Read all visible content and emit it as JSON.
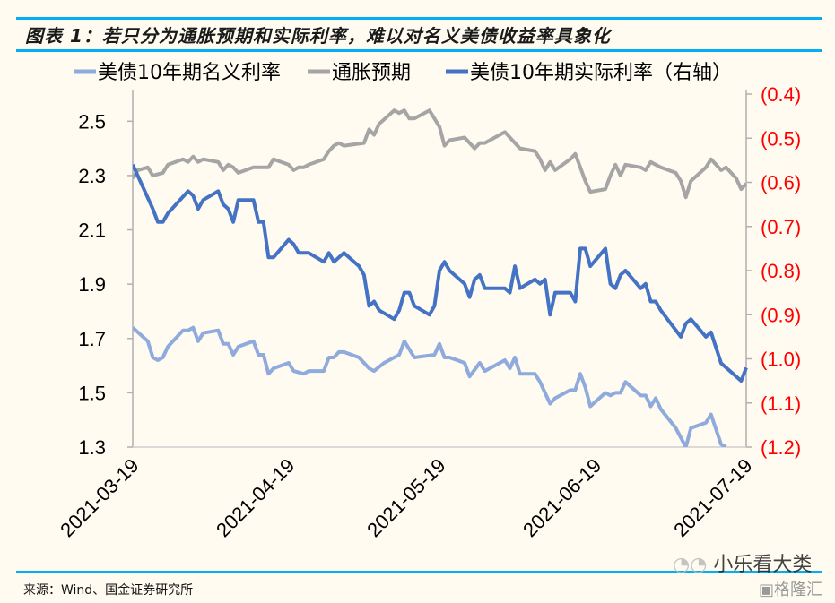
{
  "title": "图表 1：若只分为通胀预期和实际利率，难以对名义美债收益率具象化",
  "source": "来源：Wind、国金证券研究所",
  "watermark": "小乐看大类",
  "watermark_logo": "格隆汇",
  "chart_data": {
    "type": "line",
    "legend_position": "top",
    "grid": false,
    "x_ticks": [
      "2021-03-19",
      "2021-04-19",
      "2021-05-19",
      "2021-06-19",
      "2021-07-19"
    ],
    "xlim": [
      "2021-03-19",
      "2021-07-19"
    ],
    "y_left": {
      "ylim": [
        1.3,
        2.6
      ],
      "ticks": [
        1.3,
        1.5,
        1.7,
        1.9,
        2.1,
        2.3,
        2.5
      ],
      "tick_labels": [
        "1.3",
        "1.5",
        "1.7",
        "1.9",
        "2.1",
        "2.3",
        "2.5"
      ]
    },
    "y_right": {
      "ylim": [
        -1.2,
        -0.4
      ],
      "ticks": [
        -1.2,
        -1.1,
        -1.0,
        -0.9,
        -0.8,
        -0.7,
        -0.6,
        -0.5,
        -0.4
      ],
      "tick_labels": [
        "(1.2)",
        "(1.1)",
        "(1.0)",
        "(0.9)",
        "(0.8)",
        "(0.7)",
        "(0.6)",
        "(0.5)",
        "(0.4)"
      ],
      "label_color": "#ff0000"
    },
    "series": [
      {
        "name": "美债10年期名义利率",
        "axis": "left",
        "color": "#8faadc",
        "x": [
          "2021-03-19",
          "2021-03-22",
          "2021-03-23",
          "2021-03-24",
          "2021-03-25",
          "2021-03-26",
          "2021-03-29",
          "2021-03-30",
          "2021-03-31",
          "2021-04-01",
          "2021-04-02",
          "2021-04-05",
          "2021-04-06",
          "2021-04-07",
          "2021-04-08",
          "2021-04-09",
          "2021-04-12",
          "2021-04-13",
          "2021-04-14",
          "2021-04-15",
          "2021-04-16",
          "2021-04-19",
          "2021-04-20",
          "2021-04-22",
          "2021-04-23",
          "2021-04-26",
          "2021-04-27",
          "2021-04-28",
          "2021-04-29",
          "2021-04-30",
          "2021-05-03",
          "2021-05-05",
          "2021-05-06",
          "2021-05-08",
          "2021-05-11",
          "2021-05-12",
          "2021-05-14",
          "2021-05-18",
          "2021-05-19",
          "2021-05-20",
          "2021-05-21",
          "2021-05-24",
          "2021-05-25",
          "2021-05-27",
          "2021-05-28",
          "2021-06-01",
          "2021-06-02",
          "2021-06-03",
          "2021-06-04",
          "2021-06-07",
          "2021-06-08",
          "2021-06-09",
          "2021-06-10",
          "2021-06-11",
          "2021-06-14",
          "2021-06-15",
          "2021-06-16",
          "2021-06-17",
          "2021-06-18",
          "2021-06-21",
          "2021-06-22",
          "2021-06-23",
          "2021-06-24",
          "2021-06-25",
          "2021-06-28",
          "2021-06-29",
          "2021-06-30",
          "2021-07-01",
          "2021-07-02",
          "2021-07-05",
          "2021-07-07",
          "2021-07-08",
          "2021-07-11",
          "2021-07-12",
          "2021-07-14",
          "2021-07-15"
        ],
        "values": [
          1.74,
          1.69,
          1.63,
          1.62,
          1.63,
          1.67,
          1.73,
          1.73,
          1.74,
          1.69,
          1.72,
          1.73,
          1.68,
          1.68,
          1.64,
          1.67,
          1.69,
          1.64,
          1.64,
          1.57,
          1.59,
          1.61,
          1.58,
          1.57,
          1.58,
          1.58,
          1.63,
          1.63,
          1.65,
          1.65,
          1.63,
          1.59,
          1.58,
          1.61,
          1.64,
          1.69,
          1.63,
          1.64,
          1.68,
          1.63,
          1.63,
          1.61,
          1.56,
          1.61,
          1.58,
          1.62,
          1.59,
          1.63,
          1.57,
          1.57,
          1.54,
          1.5,
          1.46,
          1.48,
          1.51,
          1.51,
          1.57,
          1.52,
          1.45,
          1.5,
          1.49,
          1.5,
          1.5,
          1.54,
          1.49,
          1.49,
          1.45,
          1.48,
          1.44,
          1.37,
          1.3,
          1.37,
          1.39,
          1.42,
          1.31,
          1.3
        ]
      },
      {
        "name": "通胀预期",
        "axis": "left",
        "color": "#a5a5a5",
        "x": [
          "2021-03-19",
          "2021-03-20",
          "2021-03-22",
          "2021-03-23",
          "2021-03-25",
          "2021-03-26",
          "2021-03-29",
          "2021-03-30",
          "2021-03-31",
          "2021-04-01",
          "2021-04-02",
          "2021-04-05",
          "2021-04-06",
          "2021-04-07",
          "2021-04-08",
          "2021-04-09",
          "2021-04-12",
          "2021-04-15",
          "2021-04-16",
          "2021-04-19",
          "2021-04-20",
          "2021-04-21",
          "2021-04-22",
          "2021-04-23",
          "2021-04-26",
          "2021-04-27",
          "2021-04-28",
          "2021-04-29",
          "2021-04-30",
          "2021-05-04",
          "2021-05-05",
          "2021-05-06",
          "2021-05-07",
          "2021-05-10",
          "2021-05-11",
          "2021-05-12",
          "2021-05-13",
          "2021-05-14",
          "2021-05-17",
          "2021-05-18",
          "2021-05-19",
          "2021-05-20",
          "2021-05-21",
          "2021-05-24",
          "2021-05-26",
          "2021-05-27",
          "2021-05-28",
          "2021-06-01",
          "2021-06-04",
          "2021-06-07",
          "2021-06-08",
          "2021-06-09",
          "2021-06-10",
          "2021-06-11",
          "2021-06-14",
          "2021-06-15",
          "2021-06-16",
          "2021-06-17",
          "2021-06-18",
          "2021-06-21",
          "2021-06-22",
          "2021-06-23",
          "2021-06-24",
          "2021-06-25",
          "2021-06-28",
          "2021-06-29",
          "2021-06-30",
          "2021-07-02",
          "2021-07-05",
          "2021-07-06",
          "2021-07-07",
          "2021-07-08",
          "2021-07-11",
          "2021-07-12",
          "2021-07-14",
          "2021-07-15",
          "2021-07-17",
          "2021-07-18",
          "2021-07-19"
        ],
        "values": [
          2.29,
          2.32,
          2.33,
          2.3,
          2.31,
          2.34,
          2.36,
          2.35,
          2.37,
          2.35,
          2.36,
          2.35,
          2.32,
          2.34,
          2.33,
          2.31,
          2.33,
          2.33,
          2.36,
          2.34,
          2.32,
          2.33,
          2.33,
          2.34,
          2.36,
          2.39,
          2.41,
          2.42,
          2.41,
          2.42,
          2.47,
          2.45,
          2.49,
          2.54,
          2.53,
          2.54,
          2.51,
          2.51,
          2.54,
          2.51,
          2.48,
          2.41,
          2.43,
          2.44,
          2.4,
          2.42,
          2.42,
          2.46,
          2.4,
          2.39,
          2.36,
          2.32,
          2.35,
          2.32,
          2.36,
          2.38,
          2.33,
          2.28,
          2.24,
          2.25,
          2.3,
          2.34,
          2.3,
          2.34,
          2.33,
          2.32,
          2.35,
          2.33,
          2.31,
          2.28,
          2.22,
          2.28,
          2.33,
          2.36,
          2.32,
          2.33,
          2.29,
          2.25,
          2.27
        ]
      },
      {
        "name": "美债10年期实际利率（右轴）",
        "axis": "right",
        "color": "#4472c4",
        "x": [
          "2021-03-19",
          "2021-03-23",
          "2021-03-24",
          "2021-03-25",
          "2021-03-26",
          "2021-03-30",
          "2021-03-31",
          "2021-04-01",
          "2021-04-02",
          "2021-04-05",
          "2021-04-06",
          "2021-04-07",
          "2021-04-08",
          "2021-04-09",
          "2021-04-12",
          "2021-04-13",
          "2021-04-14",
          "2021-04-15",
          "2021-04-16",
          "2021-04-19",
          "2021-04-20",
          "2021-04-21",
          "2021-04-23",
          "2021-04-26",
          "2021-04-27",
          "2021-04-28",
          "2021-04-30",
          "2021-05-03",
          "2021-05-04",
          "2021-05-05",
          "2021-05-06",
          "2021-05-07",
          "2021-05-10",
          "2021-05-11",
          "2021-05-12",
          "2021-05-13",
          "2021-05-14",
          "2021-05-17",
          "2021-05-18",
          "2021-05-19",
          "2021-05-20",
          "2021-05-21",
          "2021-05-24",
          "2021-05-25",
          "2021-05-26",
          "2021-05-27",
          "2021-05-28",
          "2021-06-01",
          "2021-06-02",
          "2021-06-03",
          "2021-06-04",
          "2021-06-07",
          "2021-06-08",
          "2021-06-09",
          "2021-06-10",
          "2021-06-11",
          "2021-06-14",
          "2021-06-15",
          "2021-06-16",
          "2021-06-17",
          "2021-06-18",
          "2021-06-21",
          "2021-06-22",
          "2021-06-23",
          "2021-06-24",
          "2021-06-25",
          "2021-06-28",
          "2021-06-29",
          "2021-06-30",
          "2021-07-01",
          "2021-07-02",
          "2021-07-06",
          "2021-07-07",
          "2021-07-08",
          "2021-07-11",
          "2021-07-12",
          "2021-07-14",
          "2021-07-18",
          "2021-07-19"
        ],
        "values": [
          -0.56,
          -0.66,
          -0.69,
          -0.69,
          -0.67,
          -0.62,
          -0.63,
          -0.66,
          -0.64,
          -0.62,
          -0.65,
          -0.66,
          -0.69,
          -0.64,
          -0.64,
          -0.69,
          -0.69,
          -0.77,
          -0.77,
          -0.73,
          -0.74,
          -0.76,
          -0.76,
          -0.78,
          -0.76,
          -0.78,
          -0.76,
          -0.79,
          -0.81,
          -0.88,
          -0.87,
          -0.89,
          -0.91,
          -0.89,
          -0.85,
          -0.85,
          -0.88,
          -0.9,
          -0.88,
          -0.8,
          -0.78,
          -0.8,
          -0.83,
          -0.86,
          -0.82,
          -0.81,
          -0.84,
          -0.84,
          -0.85,
          -0.79,
          -0.84,
          -0.82,
          -0.83,
          -0.82,
          -0.9,
          -0.85,
          -0.85,
          -0.87,
          -0.75,
          -0.75,
          -0.79,
          -0.75,
          -0.83,
          -0.84,
          -0.81,
          -0.8,
          -0.84,
          -0.83,
          -0.87,
          -0.87,
          -0.89,
          -0.95,
          -0.92,
          -0.91,
          -0.95,
          -0.94,
          -1.01,
          -1.05,
          -1.02
        ]
      }
    ]
  }
}
